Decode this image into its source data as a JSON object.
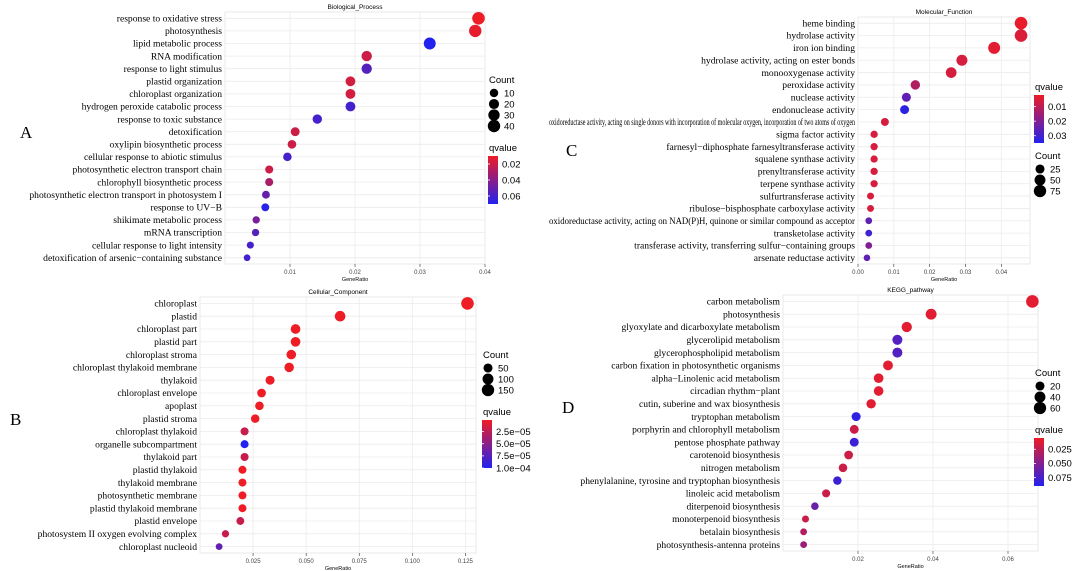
{
  "chart_data": [
    {
      "type": "scatter",
      "panel_label": "A",
      "title": "Biological_Process",
      "xlabel": "GeneRatio",
      "xlim": [
        0.0,
        0.04
      ],
      "xticks": [
        0.01,
        0.02,
        0.03,
        0.04
      ],
      "xtick_labels": [
        "0.01",
        "0.02",
        "0.03",
        "0.04"
      ],
      "categories": [
        "response to oxidative stress",
        "photosynthesis",
        "lipid metabolic process",
        "RNA modification",
        "response to light stimulus",
        "plastid organization",
        "chloroplast organization",
        "hydrogen peroxide catabolic process",
        "response to toxic substance",
        "detoxification",
        "oxylipin biosynthetic process",
        "cellular response to abiotic stimulus",
        "photosynthetic electron transport chain",
        "chlorophyll biosynthetic process",
        "photosynthetic electron transport in photosystem I",
        "response to UV−B",
        "shikimate metabolic process",
        "mRNA transcription",
        "cellular response to light intensity",
        "detoxification of arsenic−containing substance"
      ],
      "x": [
        0.039,
        0.0385,
        0.0315,
        0.0218,
        0.0218,
        0.0193,
        0.0193,
        0.0193,
        0.0142,
        0.0108,
        0.0103,
        0.0096,
        0.0068,
        0.0068,
        0.0063,
        0.0062,
        0.0048,
        0.0047,
        0.0039,
        0.0034
      ],
      "count": [
        42,
        40,
        35,
        22,
        22,
        18,
        18,
        18,
        15,
        12,
        11,
        10,
        8,
        8,
        7,
        7,
        5,
        5,
        4,
        3
      ],
      "qvalue": [
        0.01,
        0.012,
        0.07,
        0.02,
        0.055,
        0.018,
        0.018,
        0.06,
        0.06,
        0.02,
        0.02,
        0.06,
        0.02,
        0.03,
        0.05,
        0.068,
        0.045,
        0.055,
        0.06,
        0.06
      ],
      "size_legend": {
        "title": "Count",
        "values": [
          10,
          20,
          30,
          40
        ],
        "labels": [
          "10",
          "20",
          "30",
          "40"
        ]
      },
      "color_legend": {
        "title": "qvalue",
        "range": [
          0.01,
          0.07
        ],
        "ticks": [
          0.02,
          0.04,
          0.06
        ],
        "labels": [
          "0.02",
          "0.04",
          "0.06"
        ]
      }
    },
    {
      "type": "scatter",
      "panel_label": "B",
      "title": "Cellular_Component",
      "xlabel": "GeneRatio",
      "xlim": [
        0.0,
        0.13
      ],
      "xticks": [
        0.025,
        0.05,
        0.075,
        0.1,
        0.125
      ],
      "xtick_labels": [
        "0.025",
        "0.050",
        "0.075",
        "0.100",
        "0.125"
      ],
      "categories": [
        "chloroplast",
        "plastid",
        "chloroplast part",
        "plastid part",
        "chloroplast stroma",
        "chloroplast thylakoid membrane",
        "thylakoid",
        "chloroplast envelope",
        "apoplast",
        "plastid stroma",
        "chloroplast thylakoid",
        "organelle subcompartment",
        "thylakoid part",
        "plastid thylakoid",
        "thylakoid membrane",
        "photosynthetic membrane",
        "plastid thylakoid membrane",
        "plastid envelope",
        "photosystem II oxygen evolving complex",
        "chloroplast nucleoid"
      ],
      "x": [
        0.126,
        0.066,
        0.045,
        0.045,
        0.043,
        0.042,
        0.033,
        0.029,
        0.028,
        0.026,
        0.021,
        0.021,
        0.021,
        0.02,
        0.02,
        0.02,
        0.02,
        0.019,
        0.012,
        0.009
      ],
      "count": [
        160,
        90,
        65,
        65,
        62,
        60,
        48,
        42,
        40,
        38,
        30,
        30,
        30,
        29,
        29,
        29,
        29,
        27,
        18,
        12
      ],
      "qvalue": [
        1e-06,
        1e-06,
        1e-06,
        1e-06,
        1e-06,
        1e-06,
        1e-06,
        1e-06,
        1e-06,
        1e-06,
        2e-05,
        0.0001,
        2e-05,
        1e-06,
        1e-06,
        1e-06,
        1e-06,
        2e-05,
        2e-05,
        7e-05
      ],
      "size_legend": {
        "title": "Count",
        "values": [
          50,
          100,
          150
        ],
        "labels": [
          "50",
          "100",
          "150"
        ]
      },
      "color_legend": {
        "title": "qvalue",
        "range": [
          1e-06,
          0.0001
        ],
        "ticks": [
          2.5e-05,
          5e-05,
          7.5e-05,
          0.0001
        ],
        "labels": [
          "2.5e−05",
          "5.0e−05",
          "7.5e−05",
          "1.0e−04"
        ]
      }
    },
    {
      "type": "scatter",
      "panel_label": "C",
      "title": "Molecular_Function",
      "xlabel": "GeneRatio",
      "xlim": [
        0.0,
        0.048
      ],
      "xticks": [
        0.0,
        0.01,
        0.02,
        0.03,
        0.04
      ],
      "xtick_labels": [
        "0.00",
        "0.01",
        "0.02",
        "0.03",
        "0.04"
      ],
      "categories": [
        "heme binding",
        "hydrolase activity",
        "iron ion binding",
        "hydrolase activity, acting on ester bonds",
        "monooxygenase activity",
        "peroxidase activity",
        "nuclease activity",
        "endonuclease activity",
        "oxidoreductase activity, acting on single donors with incorporation of molecular oxygen, incorporation of two atoms of oxygen",
        "sigma factor activity",
        "farnesyl−diphosphate farnesyltransferase activity",
        "squalene synthase activity",
        "prenyltransferase activity",
        "terpene synthase activity",
        "sulfurtransferase activity",
        "ribulose−bisphosphate carboxylase activity",
        "oxidoreductase activity, acting on NAD(P)H, quinone or similar compound as acceptor",
        "transketolase activity",
        "transferase activity, transferring sulfur−containing groups",
        "arsenate reductase activity"
      ],
      "x": [
        0.0455,
        0.0455,
        0.038,
        0.029,
        0.026,
        0.016,
        0.0135,
        0.013,
        0.0075,
        0.0045,
        0.0045,
        0.0045,
        0.0045,
        0.0045,
        0.0035,
        0.0035,
        0.003,
        0.003,
        0.003,
        0.0025
      ],
      "count": [
        80,
        80,
        68,
        52,
        47,
        30,
        25,
        24,
        14,
        9,
        9,
        9,
        9,
        9,
        7,
        7,
        6,
        6,
        6,
        5
      ],
      "qvalue": [
        0.003,
        0.005,
        0.004,
        0.006,
        0.006,
        0.012,
        0.025,
        0.033,
        0.006,
        0.006,
        0.006,
        0.006,
        0.006,
        0.006,
        0.006,
        0.006,
        0.025,
        0.03,
        0.02,
        0.025
      ],
      "color_legend": {
        "title": "qvalue",
        "range": [
          0.002,
          0.035
        ],
        "ticks": [
          0.01,
          0.02,
          0.03
        ],
        "labels": [
          "0.01",
          "0.02",
          "0.03"
        ]
      },
      "size_legend": {
        "title": "Count",
        "values": [
          25,
          50,
          75
        ],
        "labels": [
          "25",
          "50",
          "75"
        ]
      }
    },
    {
      "type": "scatter",
      "panel_label": "D",
      "title": "KEGG_pathway",
      "xlabel": "GeneRatio",
      "xlim": [
        0.0,
        0.068
      ],
      "xticks": [
        0.02,
        0.04,
        0.06
      ],
      "xtick_labels": [
        "0.02",
        "0.04",
        "0.06"
      ],
      "categories": [
        "carbon metabolism",
        "photosynthesis",
        "glyoxylate and dicarboxylate metabolism",
        "glycerolipid metabolism",
        "glycerophospholipid metabolism",
        "carbon fixation in photosynthetic organisms",
        "alpha−Linolenic acid metabolism",
        "circadian rhythm−plant",
        "cutin, suberine and wax biosynthesis",
        "tryptophan metabolism",
        "porphyrin and chlorophyll metabolism",
        "pentose phosphate pathway",
        "carotenoid biosynthesis",
        "nitrogen metabolism",
        "phenylalanine, tyrosine and tryptophan biosynthesis",
        "linoleic acid metabolism",
        "diterpenoid biosynthesis",
        "monoterpenoid biosynthesis",
        "betalain biosynthesis",
        "photosynthesis-antenna proteins"
      ],
      "x": [
        0.0665,
        0.0395,
        0.033,
        0.0305,
        0.0305,
        0.028,
        0.0255,
        0.0255,
        0.0235,
        0.0195,
        0.019,
        0.019,
        0.0175,
        0.016,
        0.0145,
        0.0115,
        0.0085,
        0.006,
        0.0055,
        0.0055
      ],
      "count": [
        65,
        40,
        33,
        30,
        30,
        28,
        26,
        26,
        24,
        20,
        19,
        19,
        18,
        16,
        15,
        12,
        9,
        6,
        5,
        5
      ],
      "qvalue": [
        0.01,
        0.01,
        0.01,
        0.07,
        0.07,
        0.01,
        0.01,
        0.01,
        0.01,
        0.085,
        0.02,
        0.08,
        0.02,
        0.02,
        0.08,
        0.02,
        0.06,
        0.02,
        0.03,
        0.04
      ],
      "size_legend": {
        "title": "Count",
        "values": [
          20,
          40,
          60
        ],
        "labels": [
          "20",
          "40",
          "60"
        ]
      },
      "color_legend": {
        "title": "qvalue",
        "range": [
          0.005,
          0.09
        ],
        "ticks": [
          0.025,
          0.05,
          0.075
        ],
        "labels": [
          "0.025",
          "0.050",
          "0.075"
        ]
      }
    }
  ],
  "colors": {
    "low_q": "#ee1c25",
    "high_q": "#2222ee",
    "grid": "#ebebeb",
    "text": "#000000",
    "axis": "#333333"
  }
}
